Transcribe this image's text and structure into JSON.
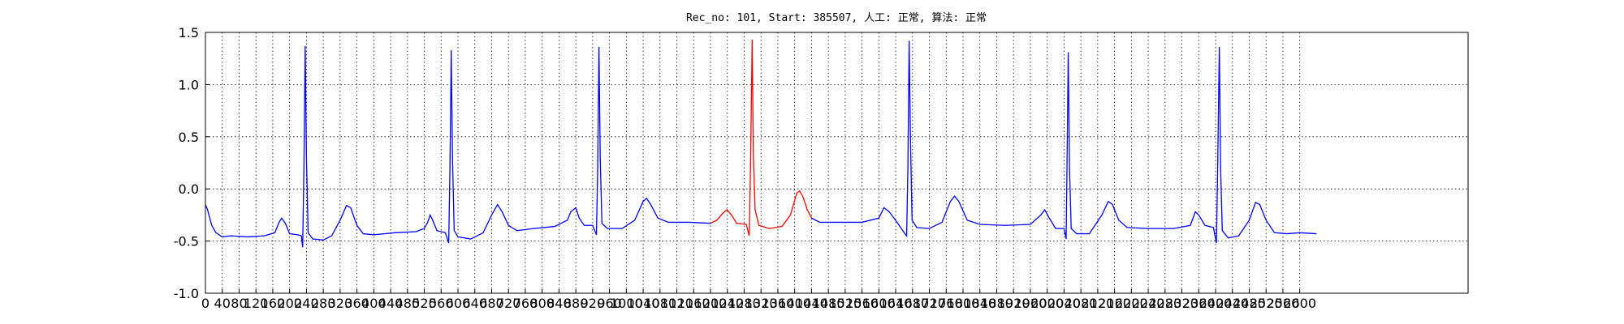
{
  "chart_data": {
    "type": "line",
    "title": "Rec_no: 101, Start: 385507, 人工: 正常, 算法: 正常",
    "xlim": [
      0,
      3000
    ],
    "xticks": [
      0,
      40,
      80,
      120,
      160,
      200,
      240,
      280,
      320,
      360,
      400,
      440,
      480,
      520,
      560,
      600,
      640,
      680,
      720,
      760,
      800,
      840,
      880,
      920,
      960,
      1000,
      1040,
      1080,
      1120,
      1160,
      1200,
      1240,
      1280,
      1320,
      1360,
      1400,
      1440,
      1480,
      1520,
      1560,
      1600,
      1640,
      1680,
      1720,
      1760,
      1800,
      1840,
      1880,
      1920,
      1960,
      2000,
      2040,
      2080,
      2120,
      2160,
      2200,
      2240,
      2280,
      2320,
      2360,
      2400,
      2440,
      2480,
      2520,
      2560,
      2600
    ],
    "ylim": [
      -1.0,
      1.5
    ],
    "yticks": [
      {
        "value": -1.0,
        "label": "-1.0"
      },
      -0.5,
      {
        "value": 0.0,
        "label": "0.0"
      },
      0.5,
      {
        "value": 1.0,
        "label": "1.0"
      },
      1.5
    ],
    "grid": true,
    "series": [
      {
        "color": "#0000ff",
        "x": [
          0,
          5,
          15,
          25,
          40,
          60,
          100,
          140,
          165,
          175,
          181,
          190,
          200,
          220,
          228,
          231,
          234,
          237,
          240,
          244,
          255,
          280,
          300,
          320,
          335,
          345,
          360,
          375,
          400,
          450,
          500,
          520,
          528,
          534,
          540,
          550,
          570,
          578,
          581,
          584,
          587,
          591,
          600,
          630,
          660,
          680,
          694,
          705,
          720,
          740,
          780,
          830,
          860,
          868,
          880,
          888,
          900,
          920,
          929,
          932,
          935,
          938,
          942,
          955,
          990,
          1020,
          1040,
          1048,
          1058,
          1075,
          1100,
          1150,
          1200,
          1320,
          1440,
          1460,
          1500,
          1560,
          1600,
          1612,
          1625,
          1645,
          1662,
          1666,
          1669,
          1672,
          1675,
          1679,
          1690,
          1720,
          1750,
          1770,
          1780,
          1790,
          1810,
          1840,
          1900,
          1960,
          1985,
          1994,
          2005,
          2020,
          2040,
          2045,
          2047,
          2050,
          2053,
          2057,
          2070,
          2100,
          2130,
          2145,
          2155,
          2170,
          2190,
          2240,
          2300,
          2340,
          2352,
          2360,
          2375,
          2395,
          2402,
          2405,
          2409,
          2412,
          2416,
          2430,
          2455,
          2480,
          2495,
          2505,
          2520,
          2540,
          2570,
          2600,
          2640
        ],
        "values": [
          -0.15,
          -0.2,
          -0.35,
          -0.42,
          -0.46,
          -0.45,
          -0.46,
          -0.45,
          -0.42,
          -0.32,
          -0.28,
          -0.33,
          -0.43,
          -0.44,
          -0.45,
          -0.56,
          0.2,
          1.37,
          0.3,
          -0.42,
          -0.48,
          -0.49,
          -0.45,
          -0.3,
          -0.16,
          -0.18,
          -0.35,
          -0.43,
          -0.44,
          -0.42,
          -0.41,
          -0.38,
          -0.32,
          -0.25,
          -0.3,
          -0.4,
          -0.42,
          -0.52,
          0.2,
          1.33,
          0.3,
          -0.4,
          -0.46,
          -0.48,
          -0.42,
          -0.25,
          -0.15,
          -0.22,
          -0.35,
          -0.4,
          -0.38,
          -0.36,
          -0.3,
          -0.22,
          -0.18,
          -0.28,
          -0.35,
          -0.35,
          -0.44,
          0.2,
          1.36,
          0.3,
          -0.33,
          -0.38,
          -0.38,
          -0.3,
          -0.12,
          -0.09,
          -0.15,
          -0.28,
          -0.32,
          -0.32,
          -0.33,
          null,
          -0.28,
          -0.32,
          -0.32,
          -0.32,
          -0.28,
          -0.18,
          -0.22,
          -0.33,
          -0.43,
          -0.45,
          0.2,
          1.42,
          0.5,
          -0.3,
          -0.37,
          -0.38,
          -0.32,
          -0.12,
          -0.07,
          -0.12,
          -0.3,
          -0.34,
          -0.35,
          -0.34,
          -0.25,
          -0.2,
          -0.28,
          -0.38,
          -0.38,
          -0.48,
          0.2,
          1.31,
          0.2,
          -0.38,
          -0.43,
          -0.43,
          -0.25,
          -0.12,
          -0.15,
          -0.3,
          -0.37,
          -0.38,
          -0.38,
          -0.35,
          -0.22,
          -0.25,
          -0.35,
          -0.37,
          -0.52,
          0.2,
          1.36,
          0.2,
          -0.4,
          -0.47,
          -0.45,
          -0.3,
          -0.13,
          -0.15,
          -0.3,
          -0.42,
          -0.43,
          -0.42,
          -0.43
        ]
      },
      {
        "color": "#ff0000",
        "x": [
          1200,
          1215,
          1230,
          1239,
          1250,
          1262,
          1285,
          1292,
          1295,
          1299,
          1302,
          1306,
          1315,
          1340,
          1370,
          1390,
          1405,
          1412,
          1420,
          1430,
          1440
        ],
        "values": [
          -0.33,
          -0.3,
          -0.23,
          -0.2,
          -0.25,
          -0.33,
          -0.34,
          -0.45,
          0.2,
          1.43,
          0.3,
          -0.2,
          -0.35,
          -0.38,
          -0.36,
          -0.25,
          -0.04,
          -0.02,
          -0.08,
          -0.2,
          -0.28
        ]
      }
    ]
  }
}
